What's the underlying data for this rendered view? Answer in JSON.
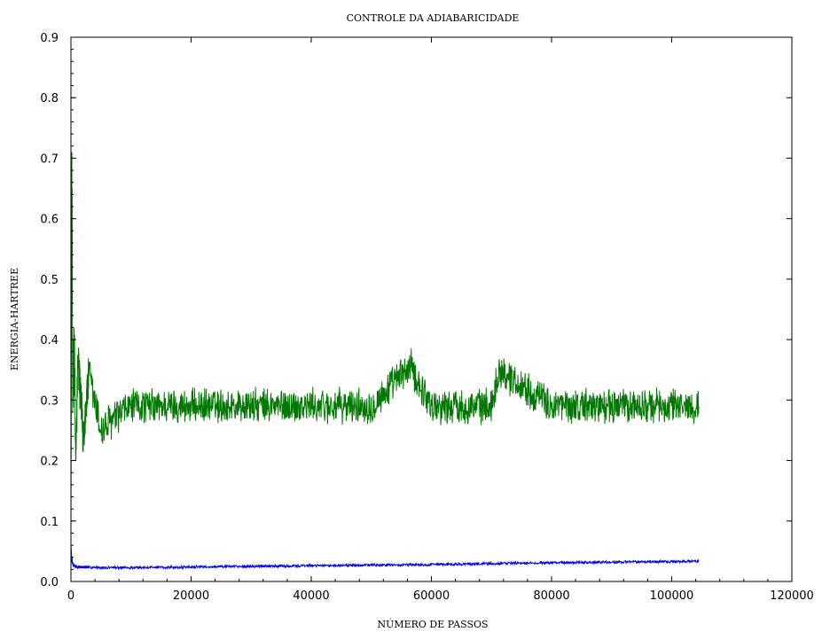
{
  "chart_data": {
    "type": "line",
    "title": "CONTROLE DA ADIABARICIDADE",
    "xlabel": "NÚMERO DE PASSOS",
    "ylabel": "ENERGIA-HARTREE",
    "xlim": [
      0,
      120000
    ],
    "ylim": [
      0,
      0.9
    ],
    "x_ticks": [
      0,
      20000,
      40000,
      60000,
      80000,
      100000,
      120000
    ],
    "x_tick_labels": [
      "0",
      "20000",
      "40000",
      "60000",
      "80000",
      "100000",
      "120000"
    ],
    "y_ticks": [
      0.0,
      0.1,
      0.2,
      0.3,
      0.4,
      0.5,
      0.6,
      0.7,
      0.8,
      0.9
    ],
    "y_tick_labels": [
      "0.0",
      "0.1",
      "0.2",
      "0.3",
      "0.4",
      "0.5",
      "0.6",
      "0.7",
      "0.8",
      "0.9"
    ],
    "grid": false,
    "legend": "none",
    "x_end": 104500,
    "series": [
      {
        "color": "#007700",
        "x": [
          0,
          150,
          300,
          500,
          800,
          1200,
          2000,
          3000,
          5000,
          10000,
          20000,
          30000,
          40000,
          50000,
          56500,
          60000,
          70000,
          71200,
          80000,
          90000,
          100000,
          104500
        ],
        "y": [
          0.09,
          0.71,
          0.28,
          0.42,
          0.2,
          0.37,
          0.24,
          0.34,
          0.25,
          0.29,
          0.29,
          0.29,
          0.29,
          0.29,
          0.355,
          0.29,
          0.29,
          0.35,
          0.29,
          0.29,
          0.29,
          0.29
        ],
        "band": [
          0.0,
          0.3,
          0.25,
          0.18,
          0.14,
          0.12,
          0.1,
          0.09,
          0.08,
          0.065,
          0.065,
          0.065,
          0.065,
          0.065,
          0.07,
          0.065,
          0.065,
          0.065,
          0.065,
          0.065,
          0.065,
          0.06
        ]
      },
      {
        "color": "#0000ee",
        "x": [
          0,
          150,
          300,
          600,
          1000,
          5000,
          10000,
          20000,
          40000,
          60000,
          80000,
          100000,
          104500
        ],
        "y": [
          0.06,
          0.035,
          0.028,
          0.025,
          0.024,
          0.023,
          0.023,
          0.024,
          0.026,
          0.028,
          0.031,
          0.033,
          0.034
        ],
        "band": [
          0.0,
          0.02,
          0.012,
          0.008,
          0.006,
          0.005,
          0.005,
          0.005,
          0.005,
          0.005,
          0.005,
          0.005,
          0.005
        ]
      }
    ]
  }
}
